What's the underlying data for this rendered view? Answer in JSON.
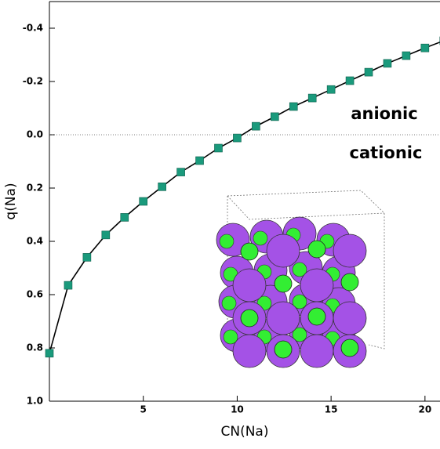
{
  "chart_data": {
    "type": "line",
    "x_label": "CN(Na)",
    "y_label": "q(Na)",
    "annotations": [
      "anionic",
      "cationic"
    ],
    "x": [
      0,
      1,
      2,
      3,
      4,
      5,
      6,
      7,
      8,
      9,
      10,
      11,
      12,
      13,
      14,
      15,
      16,
      17,
      18,
      19,
      20,
      21
    ],
    "series": [
      {
        "name": "q(Na)",
        "color": "#1a9a7c",
        "values": [
          0.82,
          0.565,
          0.46,
          0.376,
          0.31,
          0.25,
          0.195,
          0.14,
          0.097,
          0.05,
          0.012,
          -0.032,
          -0.068,
          -0.106,
          -0.138,
          -0.17,
          -0.203,
          -0.235,
          -0.268,
          -0.297,
          -0.326,
          -0.353
        ]
      }
    ],
    "reference_line": 0,
    "xlim": [
      0,
      20.8
    ],
    "xticks": [
      5,
      10,
      15,
      20
    ],
    "ylim": [
      1.0,
      -0.5
    ],
    "yticks": [
      -0.4,
      -0.2,
      {
        "value": 0,
        "label": "0.0"
      },
      0.2,
      0.4,
      0.6,
      0.8,
      {
        "value": 1,
        "label": "1.0"
      }
    ]
  }
}
